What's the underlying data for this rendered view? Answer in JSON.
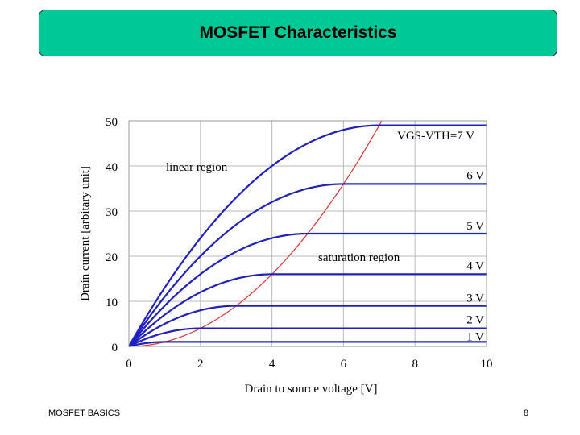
{
  "slide": {
    "title": "MOSFET Characteristics",
    "footer_left": "MOSFET BASICS",
    "page_number": "8"
  },
  "chart_data": {
    "type": "line",
    "xlabel": "Drain to source voltage [V]",
    "ylabel": "Drain current [arbitary unit]",
    "xlim": [
      0,
      10
    ],
    "ylim": [
      0,
      50
    ],
    "x_ticks": [
      0,
      2,
      4,
      6,
      8,
      10
    ],
    "y_ticks": [
      0,
      10,
      20,
      30,
      40,
      50
    ],
    "grid": true,
    "annotations": {
      "linear_region": "linear region",
      "saturation_region": "saturation region",
      "top_curve_label": "VGS-VTH=7 V"
    },
    "curves_color": "#2020c0",
    "boundary_color": "#e03030",
    "series": [
      {
        "name": "1 V",
        "vov": 1
      },
      {
        "name": "2 V",
        "vov": 2
      },
      {
        "name": "3 V",
        "vov": 3
      },
      {
        "name": "4 V",
        "vov": 4
      },
      {
        "name": "5 V",
        "vov": 5
      },
      {
        "name": "6 V",
        "vov": 6
      },
      {
        "name": "VGS-VTH=7 V",
        "vov": 7
      }
    ],
    "curve_labels": [
      "1 V",
      "2 V",
      "3 V",
      "4 V",
      "5 V",
      "6 V"
    ],
    "boundary_curve": "Id = VDS^2 (saturation boundary)"
  }
}
